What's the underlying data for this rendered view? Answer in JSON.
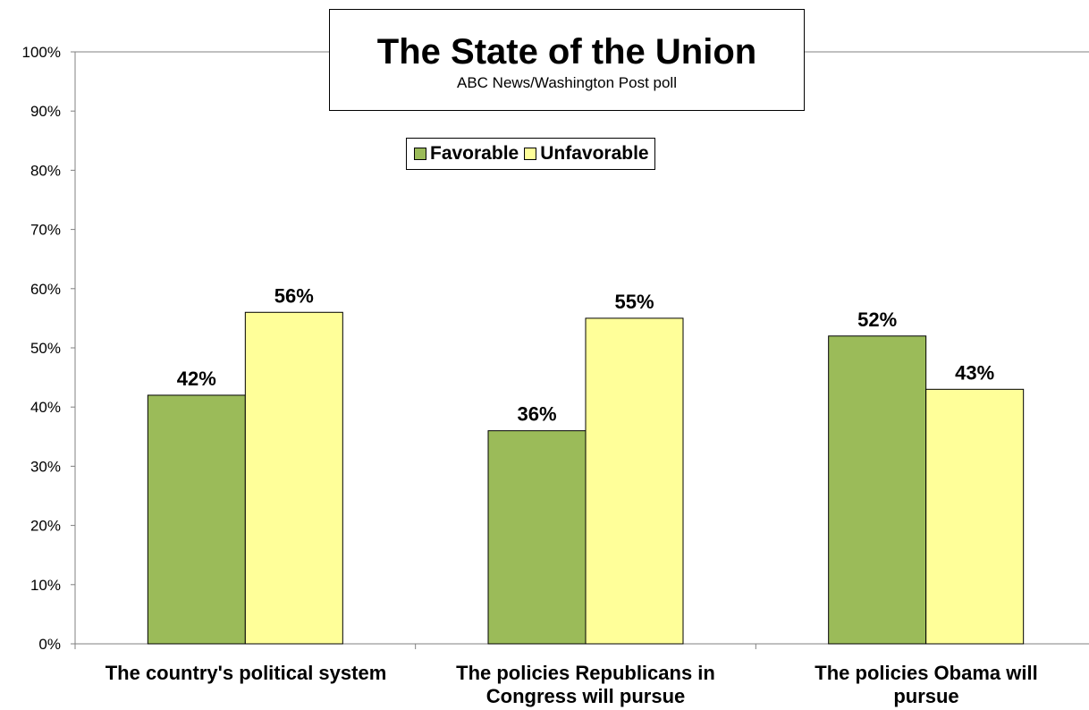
{
  "chart_data": {
    "type": "bar",
    "title": "The State of the Union",
    "subtitle": "ABC News/Washington Post poll",
    "categories": [
      "The country's political system",
      "The policies Republicans in Congress will pursue",
      "The policies Obama will pursue"
    ],
    "category_lines": [
      [
        "The country's political system"
      ],
      [
        "The policies Republicans in",
        "Congress will pursue"
      ],
      [
        "The policies Obama will",
        "pursue"
      ]
    ],
    "series": [
      {
        "name": "Favorable",
        "color": "#9BBB59",
        "values": [
          42,
          36,
          52
        ],
        "labels": [
          "42%",
          "36%",
          "52%"
        ]
      },
      {
        "name": "Unfavorable",
        "color": "#FFFF99",
        "values": [
          56,
          55,
          43
        ],
        "labels": [
          "56%",
          "55%",
          "43%"
        ]
      }
    ],
    "ylim": [
      0,
      100
    ],
    "yticks": [
      0,
      10,
      20,
      30,
      40,
      50,
      60,
      70,
      80,
      90,
      100
    ],
    "ytick_labels": [
      "0%",
      "10%",
      "20%",
      "30%",
      "40%",
      "50%",
      "60%",
      "70%",
      "80%",
      "90%",
      "100%"
    ],
    "xlabel": "",
    "ylabel": "",
    "grid": false,
    "legend_position": "top-center"
  }
}
